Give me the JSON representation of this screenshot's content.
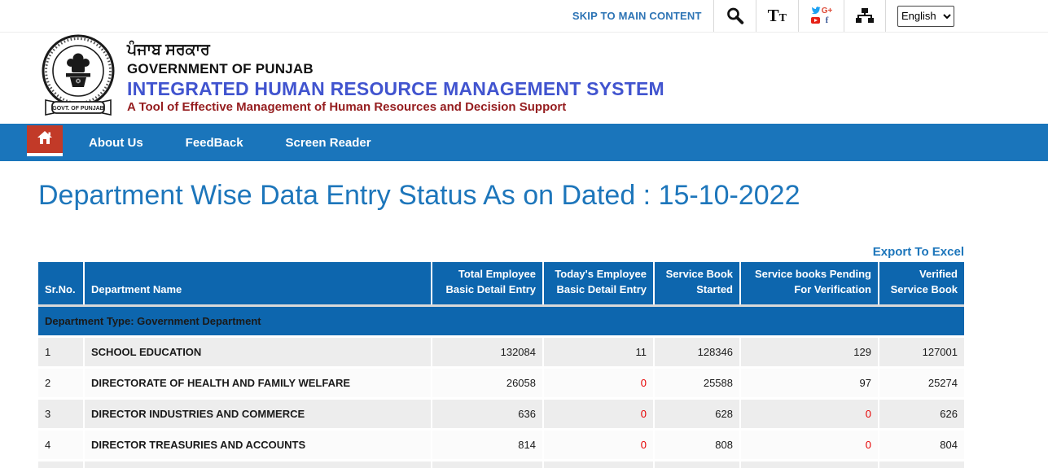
{
  "topbar": {
    "skip_link": "SKIP TO MAIN CONTENT",
    "icons": {
      "text_size_large": "T",
      "text_size_small": "T",
      "gplus_glyph": "G+",
      "facebook_glyph": "f"
    },
    "language": {
      "selected": "English"
    }
  },
  "header": {
    "punjabi_title": "ਪੰਜਾਬ ਸਰਕਾਰ",
    "govt_line": "GOVERNMENT OF PUNJAB",
    "system_name": "INTEGRATED HUMAN RESOURCE MANAGEMENT SYSTEM",
    "tagline": "A Tool of Effective Management of Human Resources and Decision Support",
    "emblem_banner": "GOVT. OF PUNJAB"
  },
  "navbar": {
    "items": [
      {
        "label": "About Us"
      },
      {
        "label": "FeedBack"
      },
      {
        "label": "Screen Reader"
      }
    ]
  },
  "page": {
    "title": "Department Wise Data Entry Status As on Dated : 15-10-2022",
    "export_label": "Export To Excel"
  },
  "table": {
    "columns": [
      "Sr.No.",
      "Department Name",
      "Total Employee Basic Detail Entry",
      "Today's Employee Basic Detail Entry",
      "Service Book Started",
      "Service books Pending For Verification",
      "Verified Service Book"
    ],
    "section_label": "Department Type: Government Department",
    "rows": [
      {
        "sr": "1",
        "department": "SCHOOL EDUCATION",
        "values": [
          "132084",
          "11",
          "128346",
          "129",
          "127001"
        ]
      },
      {
        "sr": "2",
        "department": "DIRECTORATE OF HEALTH AND FAMILY WELFARE",
        "values": [
          "26058",
          "0",
          "25588",
          "97",
          "25274"
        ]
      },
      {
        "sr": "3",
        "department": "DIRECTOR INDUSTRIES AND COMMERCE",
        "values": [
          "636",
          "0",
          "628",
          "0",
          "626"
        ]
      },
      {
        "sr": "4",
        "department": "DIRECTOR TREASURIES AND ACCOUNTS",
        "values": [
          "814",
          "0",
          "808",
          "0",
          "804"
        ]
      }
    ]
  },
  "colors": {
    "navbar_blue": "#1a75bb",
    "table_header_blue": "#0d66ae",
    "home_tab_red": "#c23a28",
    "title_blue": "#1d76bb",
    "system_name_blue": "#4154cf",
    "tagline_maroon": "#951d1f",
    "link_number_blue": "#3333cc",
    "zero_red": "#e60000"
  }
}
